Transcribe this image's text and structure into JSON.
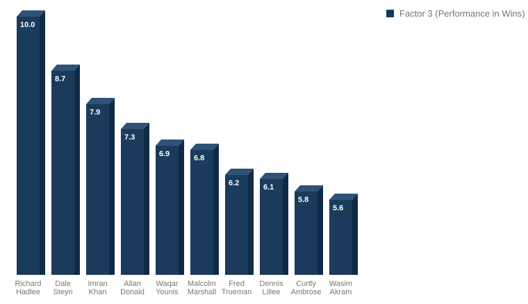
{
  "page": {
    "background_color": "#ffffff"
  },
  "legend": {
    "label": "Factor 3 (Performance in Wins)",
    "swatch_color": "#16375b",
    "text_color": "#757575"
  },
  "chart_data": {
    "type": "bar",
    "variant": "3d-column",
    "title": "",
    "xlabel": "",
    "ylabel": "",
    "categories": [
      "Richard Hadlee",
      "Dale Steyn",
      "Imran Khan",
      "Allan Donald",
      "Waqar Younis",
      "Malcolm Marshall",
      "Fred Trueman",
      "Dennis Lillee",
      "Curtly Ambrose",
      "Wasim Akram"
    ],
    "category_lines": [
      [
        "Richard",
        "Hadlee"
      ],
      [
        "Dale",
        "Steyn"
      ],
      [
        "Imran",
        "Khan"
      ],
      [
        "Allan",
        "Donald"
      ],
      [
        "Waqar",
        "Younis"
      ],
      [
        "Malcolm",
        "Marshall"
      ],
      [
        "Fred",
        "Trueman"
      ],
      [
        "Dennis",
        "Lillee"
      ],
      [
        "Curtly",
        "Ambrose"
      ],
      [
        "Wasim",
        "Akram"
      ]
    ],
    "series": [
      {
        "name": "Factor 3 (Performance in Wins)",
        "values": [
          10.0,
          8.7,
          7.9,
          7.3,
          6.9,
          6.8,
          6.2,
          6.1,
          5.8,
          5.6
        ]
      }
    ],
    "value_labels": [
      "10.0",
      "8.7",
      "7.9",
      "7.3",
      "6.9",
      "6.8",
      "6.2",
      "6.1",
      "5.8",
      "5.6"
    ],
    "ylim": [
      3.8,
      10
    ],
    "grid": false,
    "axis_lines": false,
    "legend_position": "top-right",
    "colors": {
      "bar_front": "#1a3b5c",
      "bar_top": "#2f5276",
      "bar_side": "#102a46",
      "value_label": "#ffffff",
      "category_label": "#757575"
    }
  }
}
